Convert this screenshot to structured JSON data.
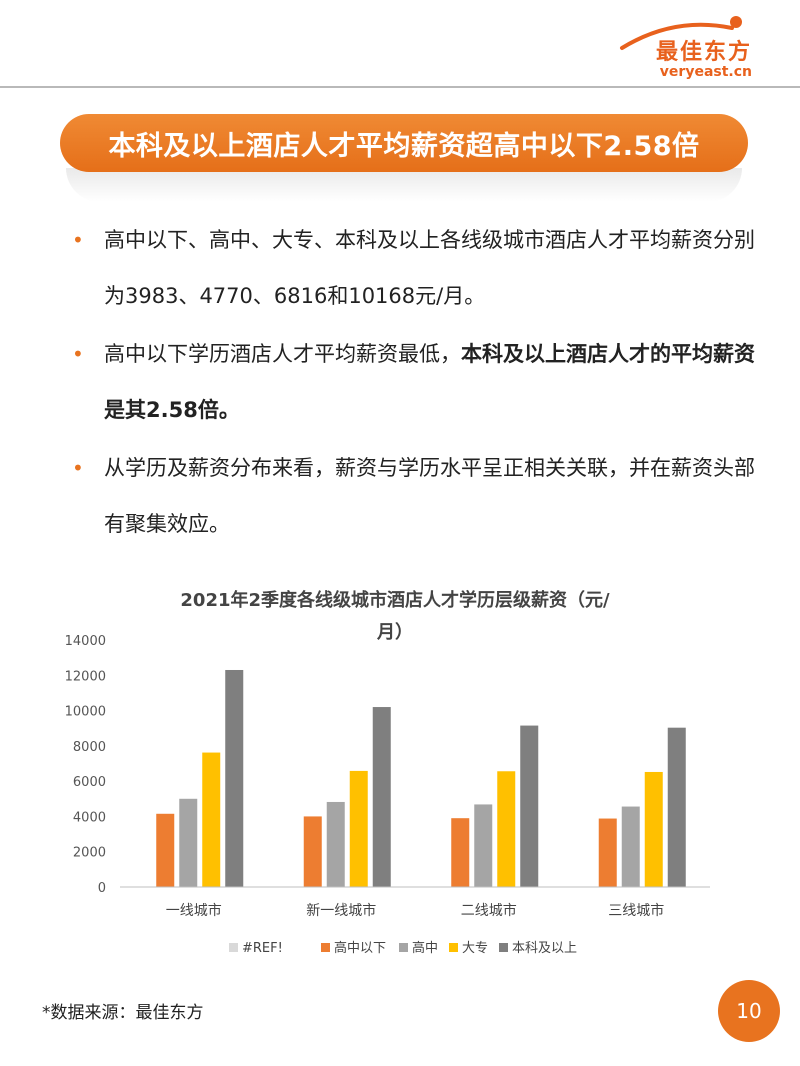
{
  "header": {
    "logo_cn": "最佳东方",
    "logo_en": "veryeast.cn"
  },
  "banner": {
    "title": "本科及以上酒店人才平均薪资超高中以下2.58倍"
  },
  "bullets": [
    {
      "text": "高中以下、高中、大专、本科及以上各线级城市酒店人才平均薪资分别为3983、4770、6816和10168元/月。"
    },
    {
      "text_normal": "高中以下学历酒店人才平均薪资最低，",
      "text_bold": "本科及以上酒店人才的平均薪资是其2.58倍。"
    },
    {
      "text": "从学历及薪资分布来看，薪资与学历水平呈正相关关联，并在薪资头部有聚集效应。"
    }
  ],
  "colors": {
    "accent": "#e8731f",
    "series": [
      "#d9d9d9",
      "#ed7d31",
      "#a5a5a5",
      "#ffc000",
      "#7f7f7f"
    ]
  },
  "chart_data": {
    "type": "bar",
    "title_line1": "2021年2季度各线级城市酒店人才学历层级薪资（元/",
    "title_line2": "月）",
    "categories": [
      "一线城市",
      "新一线城市",
      "二线城市",
      "三线城市"
    ],
    "ylim": [
      0,
      14000
    ],
    "yticks": [
      0,
      2000,
      4000,
      6000,
      8000,
      10000,
      12000,
      14000
    ],
    "legend_position": "bottom",
    "grid": false,
    "series": [
      {
        "name": "#REF!",
        "values": [
          0,
          0,
          0,
          0
        ]
      },
      {
        "name": "高中以下",
        "values": [
          4150,
          4000,
          3900,
          3880
        ]
      },
      {
        "name": "高中",
        "values": [
          5000,
          4820,
          4680,
          4560
        ]
      },
      {
        "name": "大专",
        "values": [
          7620,
          6580,
          6560,
          6520
        ]
      },
      {
        "name": "本科及以上",
        "values": [
          12300,
          10200,
          9150,
          9030
        ]
      }
    ]
  },
  "footer": {
    "source": "*数据来源：最佳东方",
    "page": "10"
  }
}
